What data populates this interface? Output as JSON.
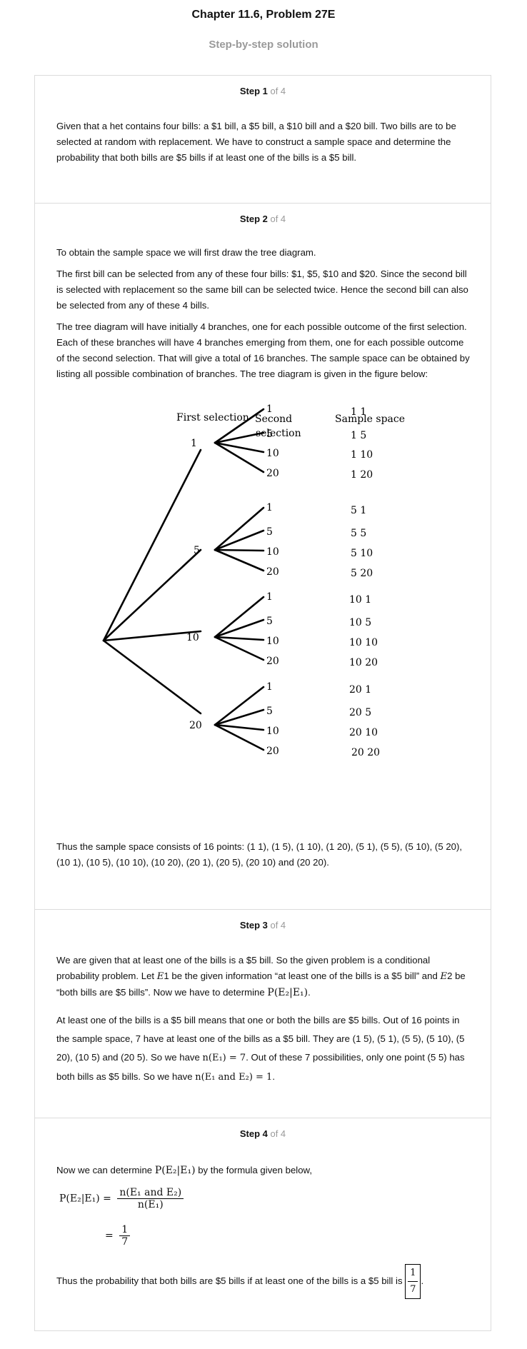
{
  "header": {
    "title": "Chapter 11.6, Problem 27E",
    "subtitle": "Step-by-step solution"
  },
  "steps": [
    {
      "label": "Step 1",
      "of": " of 4",
      "paragraphs": [
        "Given that a het contains four bills: a $1 bill, a $5 bill, a $10 bill and a $20 bill. Two bills are to be selected at random with replacement. We have to construct a sample space and determine the probability that both bills are $5 bills if at least one of the bills is a $5 bill."
      ]
    },
    {
      "label": "Step 2",
      "of": " of 4",
      "paragraphs": [
        "To obtain the sample space we will first draw the tree diagram.",
        "The first bill can be selected from any of these four bills: $1, $5, $10 and $20. Since the second bill is selected with replacement so the same bill can be selected twice. Hence the second bill can also be selected from any of these 4 bills.",
        "The tree diagram will have initially 4 branches, one for each possible outcome of the first selection. Each of these branches will have 4 branches emerging from them, one for each possible outcome of the second selection. That will give a total of 16 branches. The sample space can be obtained by listing all possible combination of branches. The tree diagram is given in the figure below:"
      ],
      "tree": {
        "col_first": "First selection",
        "col_second_1": "Second",
        "col_second_2": "selection",
        "col_sample": "Sample space",
        "first": [
          "1",
          "5",
          "10",
          "20"
        ],
        "second": [
          "1",
          "5",
          "10",
          "20"
        ],
        "samples": [
          [
            "1  1",
            "1  5",
            "1  10",
            "1  20"
          ],
          [
            "5  1",
            "5  5",
            "5  10",
            "5  20"
          ],
          [
            "10 1",
            "10 5",
            "10 10",
            "10 20"
          ],
          [
            "20 1",
            "20 5",
            "20 10",
            "20 20"
          ]
        ]
      },
      "conclusion": "Thus the sample space consists of 16 points: (1 1), (1 5), (1 10), (1 20), (5 1), (5 5), (5 10), (5 20), (10 1), (10 5), (10 10), (10 20), (20 1), (20 5), (20 10) and (20 20)."
    },
    {
      "label": "Step 3",
      "of": " of 4",
      "p1_a": "We are given that at least one of the bills is a $5 bill. So the given problem is a conditional probability problem. Let ",
      "p1_e1": "E",
      "p1_b": "1 be the given information “at least one of the bills is a $5 bill” and ",
      "p1_e2": "E",
      "p1_c": "2 be “both bills are $5 bills”. Now we have to determine ",
      "p2_a": "At least one of the bills is a $5 bill means that one or both the bills are $5 bills. Out of 16 points in the sample space, 7 have at least one of the bills as a $5 bill. They are (1 5), (5 1), (5 5), (5 10), (5 20), (10 5) and (20 5). So we have ",
      "p2_b": ". Out of these 7 possibilities, only one point (5 5) has both bills as $5 bills. So we have ",
      "math_n_e1": "n(E₁) = 7",
      "math_n_e1e2": "n(E₁ and E₂) = 1",
      "math_p": "P(E₂|E₁)"
    },
    {
      "label": "Step 4",
      "of": " of 4",
      "p1_a": "Now we can determine ",
      "p1_b": " by the formula given below,",
      "formula_lhs": "P(E₂|E₁) =",
      "formula_num": "n(E₁ and E₂)",
      "formula_den": "n(E₁)",
      "eq_sign": "=",
      "result_num": "1",
      "result_den": "7",
      "final_text": "Thus the probability that both bills are $5 bills if at least one of the bills is a $5 bill is "
    }
  ]
}
